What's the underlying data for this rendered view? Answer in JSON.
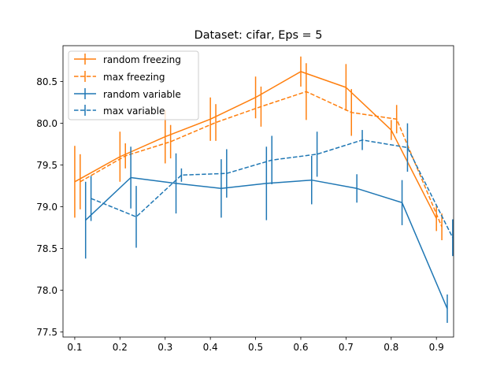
{
  "chart_data": {
    "type": "line",
    "title": "Dataset: cifar, Eps = 5",
    "xlabel": "",
    "ylabel": "",
    "xlim": [
      0.074,
      0.938
    ],
    "ylim": [
      77.44,
      80.93
    ],
    "xticks": [
      0.1,
      0.2,
      0.3,
      0.4,
      0.5,
      0.6,
      0.7,
      0.8,
      0.9
    ],
    "xtick_labels": [
      "0.1",
      "0.2",
      "0.3",
      "0.4",
      "0.5",
      "0.6",
      "0.7",
      "0.8",
      "0.9"
    ],
    "yticks": [
      77.5,
      78.0,
      78.5,
      79.0,
      79.5,
      80.0,
      80.5
    ],
    "ytick_labels": [
      "77.5",
      "78.0",
      "78.5",
      "79.0",
      "79.5",
      "80.0",
      "80.5"
    ],
    "grid": false,
    "legend_position": "upper-left",
    "series": [
      {
        "name": "random freezing",
        "color": "#ff7f0e",
        "linestyle": "solid",
        "x": [
          0.1,
          0.2,
          0.3,
          0.4,
          0.5,
          0.6,
          0.7,
          0.8,
          0.9
        ],
        "y": [
          79.3,
          79.6,
          79.84,
          80.05,
          80.31,
          80.62,
          80.43,
          79.92,
          78.86
        ],
        "yerr": [
          0.43,
          0.3,
          0.32,
          0.26,
          0.25,
          0.18,
          0.28,
          0.12,
          0.15
        ]
      },
      {
        "name": "max freezing",
        "color": "#ff7f0e",
        "linestyle": "dashed",
        "x": [
          0.112,
          0.212,
          0.312,
          0.412,
          0.512,
          0.612,
          0.712,
          0.812,
          0.912
        ],
        "y": [
          79.3,
          79.61,
          79.78,
          80.01,
          80.2,
          80.38,
          80.13,
          80.05,
          78.76
        ],
        "yerr": [
          0.33,
          0.15,
          0.2,
          0.22,
          0.24,
          0.34,
          0.28,
          0.17,
          0.16
        ]
      },
      {
        "name": "random variable",
        "color": "#1f77b4",
        "linestyle": "solid",
        "x": [
          0.124,
          0.224,
          0.324,
          0.424,
          0.524,
          0.624,
          0.724,
          0.824,
          0.924
        ],
        "y": [
          78.84,
          79.35,
          79.28,
          79.22,
          79.28,
          79.32,
          79.22,
          79.05,
          77.78
        ],
        "yerr": [
          0.46,
          0.37,
          0.36,
          0.35,
          0.44,
          0.29,
          0.17,
          0.27,
          0.17
        ]
      },
      {
        "name": "max variable",
        "color": "#1f77b4",
        "linestyle": "dashed",
        "x": [
          0.136,
          0.236,
          0.336,
          0.436,
          0.536,
          0.636,
          0.736,
          0.836,
          0.936
        ],
        "y": [
          79.1,
          78.88,
          79.38,
          79.4,
          79.56,
          79.63,
          79.8,
          79.71,
          78.63
        ],
        "yerr": [
          0.27,
          0.37,
          0.08,
          0.29,
          0.29,
          0.27,
          0.12,
          0.29,
          0.22
        ]
      }
    ]
  }
}
